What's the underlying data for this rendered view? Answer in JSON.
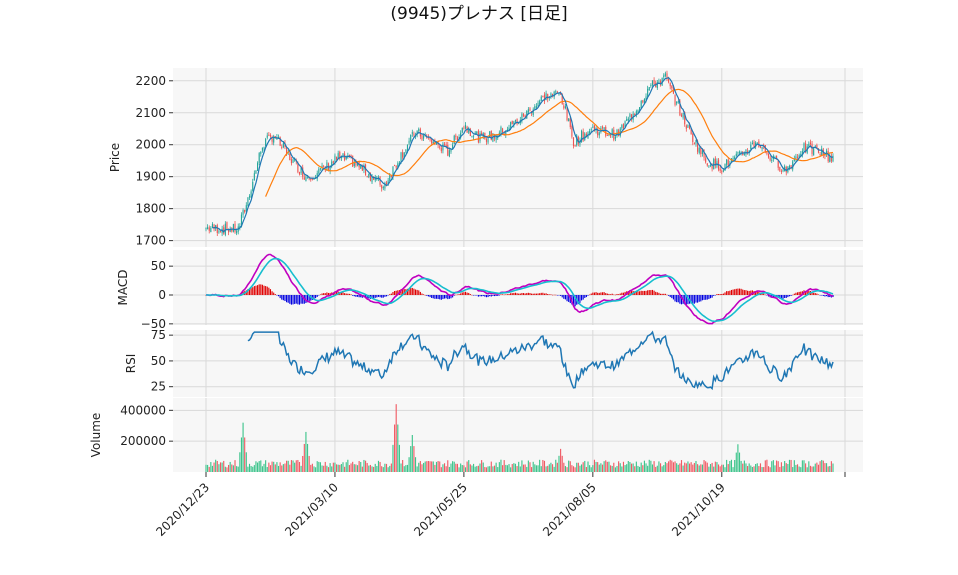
{
  "title": "(9945)プレナス  [日足]",
  "colors": {
    "panel_bg": "#f7f7f7",
    "grid": "#d9d9d9",
    "up": "#26a69a",
    "down": "#ef5350",
    "ma_short": "#1f77b4",
    "ma_long": "#ff7f0e",
    "macd_line": "#c000c0",
    "signal_line": "#17becf",
    "hist_pos": "#e00000",
    "hist_neg": "#0000e0",
    "rsi_line": "#1f77b4",
    "vol_up": "#3cc48b",
    "vol_down": "#f05a64"
  },
  "chart_data": [
    {
      "type": "candlestick",
      "panel": "price",
      "ylabel": "Price",
      "ylim": [
        1680,
        2240
      ],
      "yticks": [
        1700,
        1800,
        1900,
        2000,
        2100,
        2200
      ],
      "x_dates": [
        "2020/12/23",
        "2021/03/10",
        "2021/05/25",
        "2021/08/05",
        "2021/10/19"
      ],
      "grid": true,
      "series_approx_close": [
        {
          "x": 0,
          "y": 1740
        },
        {
          "x": 20,
          "y": 1735
        },
        {
          "x": 26,
          "y": 1830
        },
        {
          "x": 35,
          "y": 2000
        },
        {
          "x": 42,
          "y": 2030
        },
        {
          "x": 52,
          "y": 1960
        },
        {
          "x": 62,
          "y": 1900
        },
        {
          "x": 72,
          "y": 1920
        },
        {
          "x": 82,
          "y": 1960
        },
        {
          "x": 90,
          "y": 1950
        },
        {
          "x": 98,
          "y": 1920
        },
        {
          "x": 110,
          "y": 1870
        },
        {
          "x": 120,
          "y": 1960
        },
        {
          "x": 130,
          "y": 2040
        },
        {
          "x": 140,
          "y": 2010
        },
        {
          "x": 150,
          "y": 1980
        },
        {
          "x": 160,
          "y": 2060
        },
        {
          "x": 170,
          "y": 2020
        },
        {
          "x": 180,
          "y": 2030
        },
        {
          "x": 195,
          "y": 2080
        },
        {
          "x": 210,
          "y": 2150
        },
        {
          "x": 220,
          "y": 2160
        },
        {
          "x": 228,
          "y": 2010
        },
        {
          "x": 240,
          "y": 2050
        },
        {
          "x": 255,
          "y": 2030
        },
        {
          "x": 268,
          "y": 2120
        },
        {
          "x": 275,
          "y": 2180
        },
        {
          "x": 285,
          "y": 2210
        },
        {
          "x": 292,
          "y": 2130
        },
        {
          "x": 300,
          "y": 2040
        },
        {
          "x": 310,
          "y": 1950
        },
        {
          "x": 320,
          "y": 1930
        },
        {
          "x": 330,
          "y": 1960
        },
        {
          "x": 342,
          "y": 2010
        },
        {
          "x": 352,
          "y": 1950
        },
        {
          "x": 360,
          "y": 1920
        },
        {
          "x": 370,
          "y": 1990
        },
        {
          "x": 380,
          "y": 1980
        },
        {
          "x": 388,
          "y": 1960
        }
      ],
      "ma_short_name": "",
      "ma_long_name": ""
    },
    {
      "type": "line+bar",
      "panel": "macd",
      "ylabel": "MACD",
      "ylim": [
        -52,
        78
      ],
      "yticks": [
        -50,
        0,
        50
      ]
    },
    {
      "type": "line",
      "panel": "rsi",
      "ylabel": "RSI",
      "ylim": [
        15,
        80
      ],
      "yticks": [
        25,
        50,
        75
      ]
    },
    {
      "type": "bar",
      "panel": "volume",
      "ylabel": "Volume",
      "ylim": [
        0,
        480000
      ],
      "yticks": [
        200000,
        400000
      ],
      "ytick_labels": [
        "200000",
        "400000"
      ],
      "peak_volumes": [
        {
          "x": 23,
          "y": 320000
        },
        {
          "x": 62,
          "y": 260000
        },
        {
          "x": 118,
          "y": 440000
        },
        {
          "x": 128,
          "y": 240000
        },
        {
          "x": 220,
          "y": 150000
        },
        {
          "x": 330,
          "y": 180000
        }
      ]
    }
  ],
  "axis": {
    "price_tick_labels": [
      "1700",
      "1800",
      "1900",
      "2000",
      "2100",
      "2200"
    ],
    "macd_tick_labels": [
      "−50",
      "0",
      "50"
    ],
    "rsi_tick_labels": [
      "25",
      "50",
      "75"
    ],
    "volume_tick_labels": [
      "200000",
      "400000"
    ],
    "x_tick_labels": [
      "2020/12/23",
      "2021/03/10",
      "2021/05/25",
      "2021/08/05",
      "2021/10/19"
    ]
  },
  "labels": {
    "price": "Price",
    "macd": "MACD",
    "rsi": "RSI",
    "volume": "Volume"
  }
}
